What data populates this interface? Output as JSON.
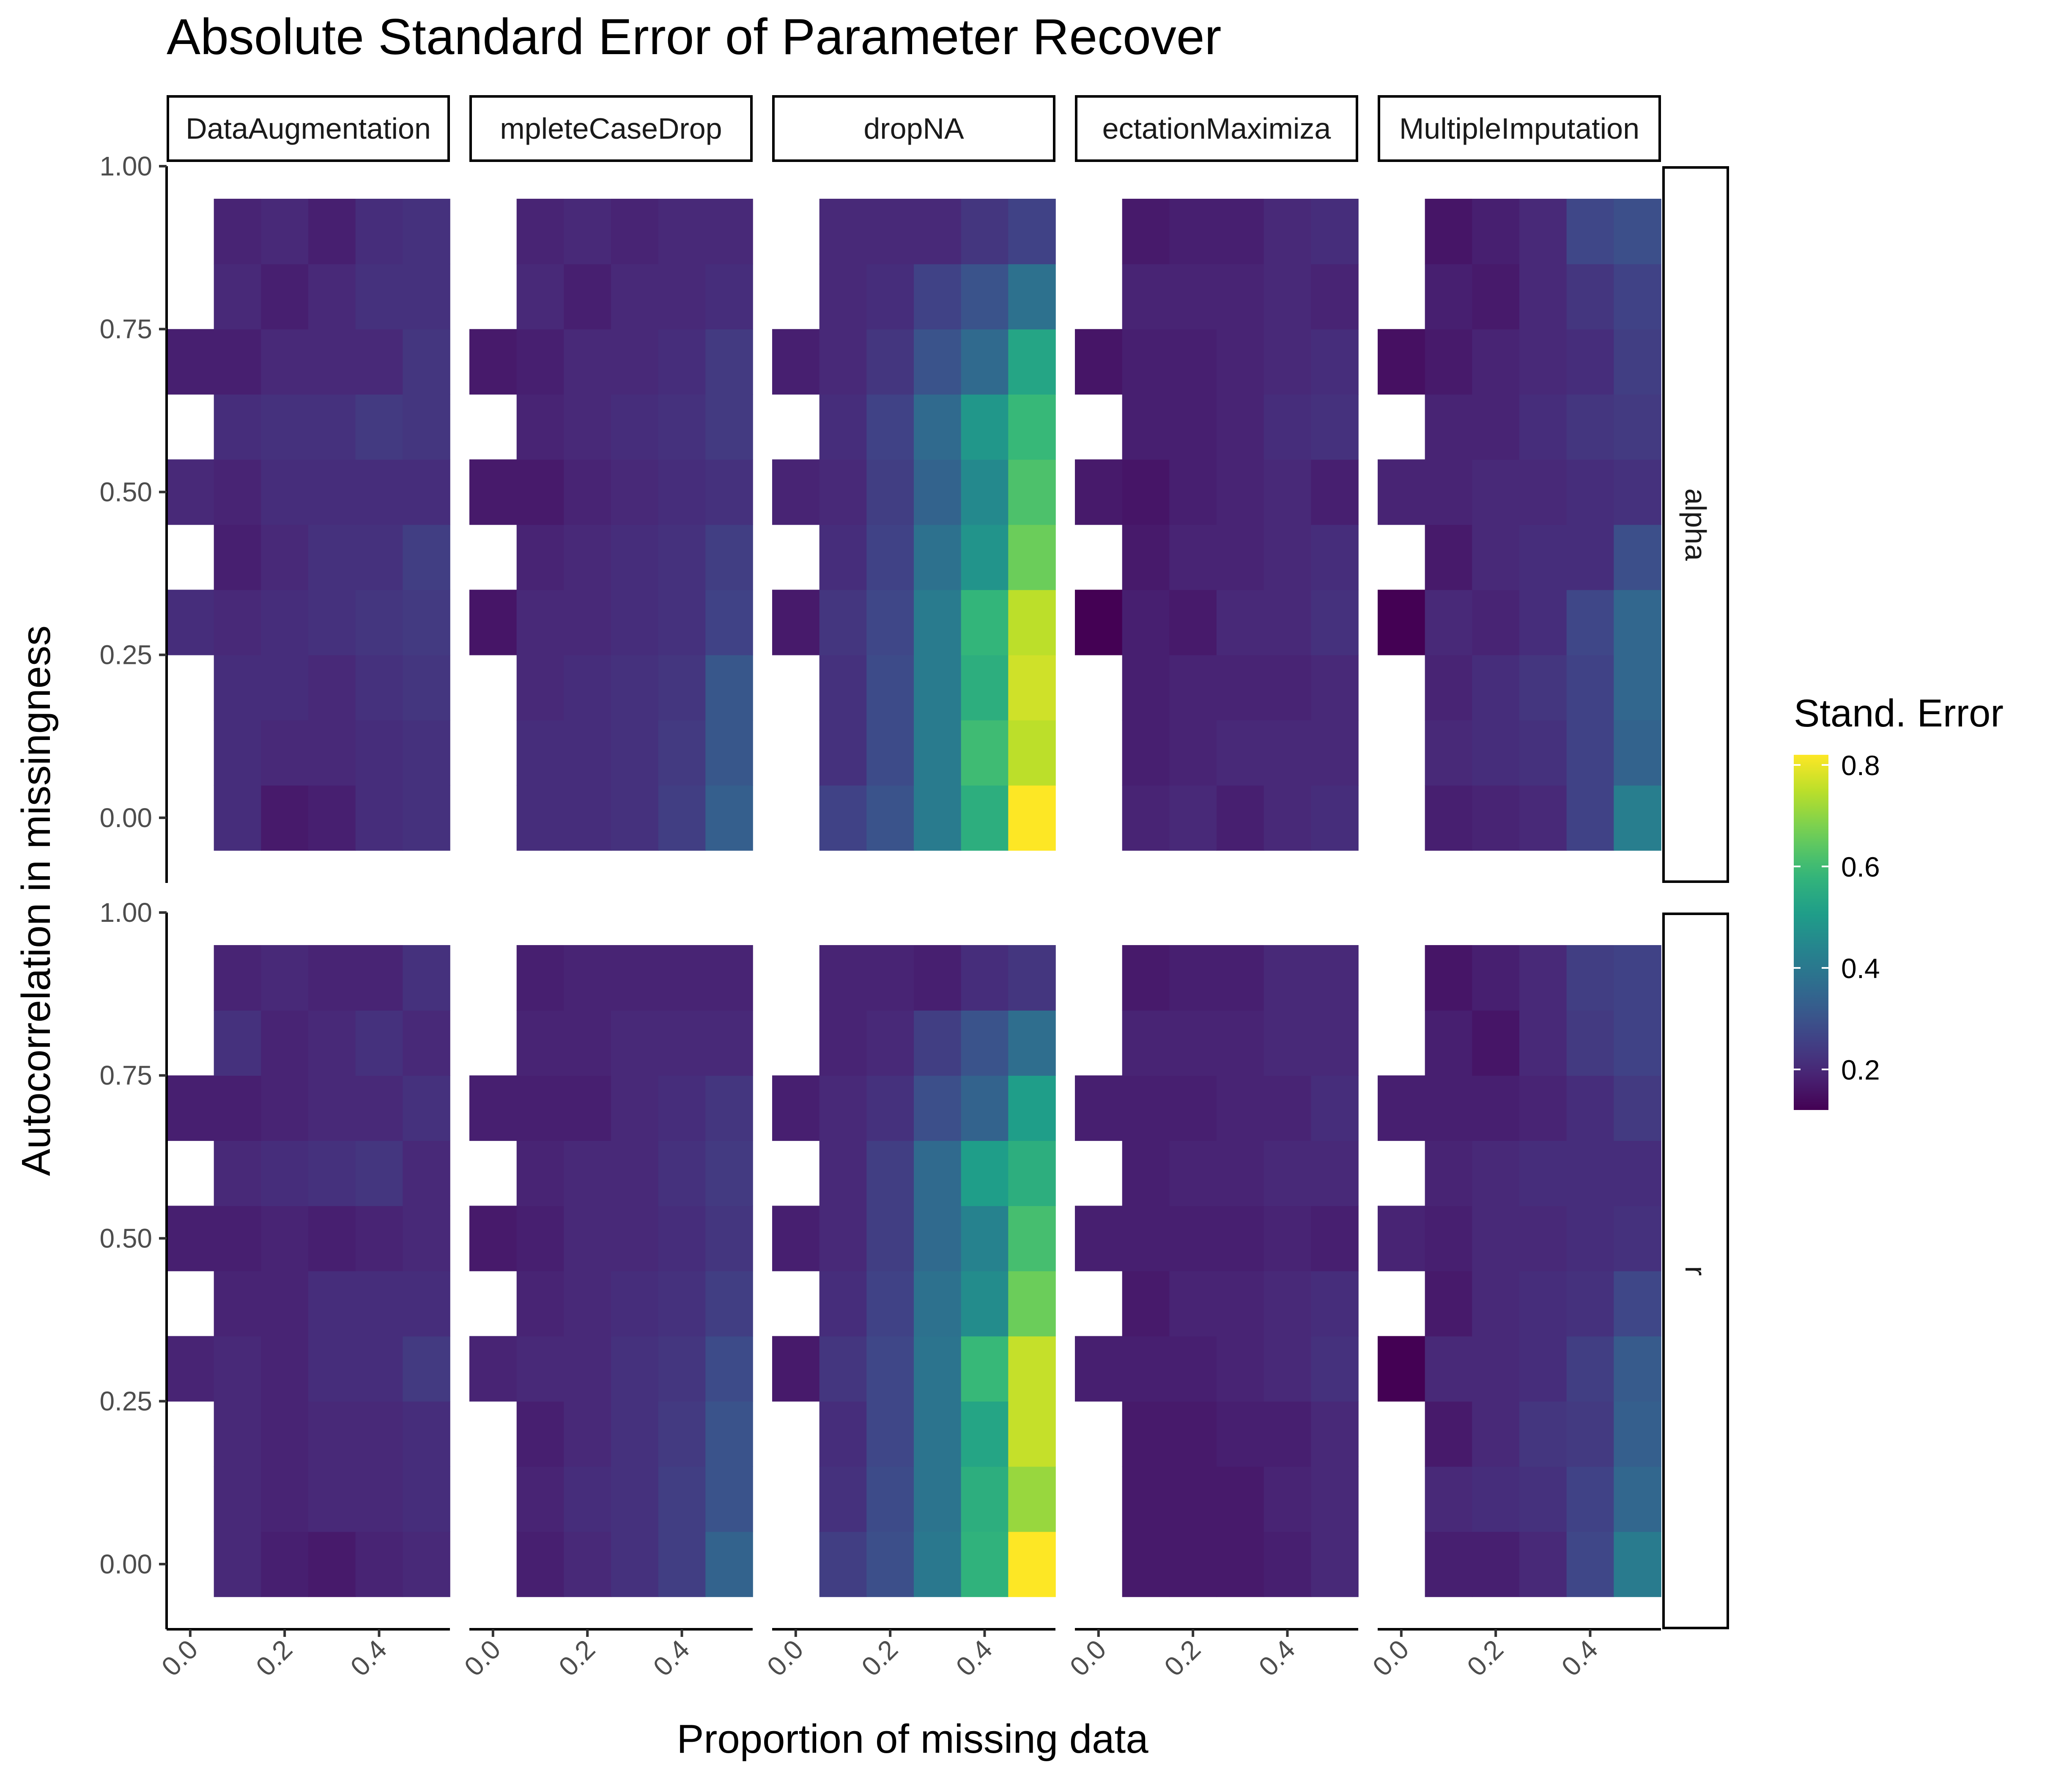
{
  "chart_data": {
    "type": "heatmap",
    "title": "Absolute Standard Error of Parameter Recover",
    "xlabel": "Proportion of missing data",
    "ylabel": "Autocorrelation in missingness",
    "legend_title": "Stand. Error",
    "legend_position": "right",
    "grid": false,
    "color_scale": "viridis",
    "color_range": [
      0.12,
      0.82
    ],
    "legend_ticks": [
      0.2,
      0.4,
      0.6,
      0.8
    ],
    "xlim": [
      -0.05,
      0.55
    ],
    "ylim": [
      -0.1,
      1.0
    ],
    "x_ticks": [
      0.0,
      0.2,
      0.4
    ],
    "x_tick_labels": [
      "0.0",
      "0.2",
      "0.4"
    ],
    "y_ticks": [
      0.0,
      0.25,
      0.5,
      0.75,
      1.0
    ],
    "y_tick_labels": [
      "0.00",
      "0.25",
      "0.50",
      "0.75",
      "1.00"
    ],
    "x": [
      0.0,
      0.1,
      0.2,
      0.3,
      0.4,
      0.5
    ],
    "y": [
      0.0,
      0.1,
      0.2,
      0.3,
      0.4,
      0.5,
      0.6,
      0.7,
      0.8,
      0.9
    ],
    "column_facets": [
      "DataAugmentation",
      "CompleteCaseDrop",
      "dropNA",
      "ExpectationMaximization",
      "MultipleImputation"
    ],
    "row_facets": [
      "alpha",
      "r"
    ],
    "panels": [
      {
        "row": "alpha",
        "method": "DataAugmentation",
        "values": [
          [
            null,
            0.21,
            0.17,
            0.18,
            0.21,
            0.22
          ],
          [
            null,
            0.21,
            0.2,
            0.2,
            0.21,
            0.22
          ],
          [
            null,
            0.21,
            0.21,
            0.2,
            0.22,
            0.23
          ],
          [
            0.21,
            0.2,
            0.21,
            0.22,
            0.23,
            0.24
          ],
          [
            null,
            0.18,
            0.2,
            0.22,
            0.22,
            0.25
          ],
          [
            0.2,
            0.19,
            0.21,
            0.21,
            0.21,
            0.21
          ],
          [
            null,
            0.21,
            0.22,
            0.22,
            0.24,
            0.23
          ],
          [
            0.18,
            0.18,
            0.2,
            0.2,
            0.2,
            0.23
          ],
          [
            null,
            0.2,
            0.18,
            0.2,
            0.22,
            0.22
          ],
          [
            null,
            0.19,
            0.2,
            0.18,
            0.21,
            0.22
          ]
        ]
      },
      {
        "row": "alpha",
        "method": "CompleteCaseDrop",
        "values": [
          [
            null,
            0.21,
            0.21,
            0.22,
            0.25,
            0.33
          ],
          [
            null,
            0.21,
            0.21,
            0.22,
            0.24,
            0.31
          ],
          [
            null,
            0.2,
            0.21,
            0.22,
            0.23,
            0.31
          ],
          [
            0.16,
            0.2,
            0.2,
            0.21,
            0.22,
            0.26
          ],
          [
            null,
            0.19,
            0.2,
            0.21,
            0.22,
            0.25
          ],
          [
            0.17,
            0.17,
            0.19,
            0.2,
            0.21,
            0.22
          ],
          [
            null,
            0.19,
            0.2,
            0.21,
            0.22,
            0.24
          ],
          [
            0.17,
            0.18,
            0.2,
            0.2,
            0.21,
            0.24
          ],
          [
            null,
            0.2,
            0.18,
            0.2,
            0.2,
            0.21
          ],
          [
            null,
            0.19,
            0.2,
            0.19,
            0.2,
            0.2
          ]
        ]
      },
      {
        "row": "alpha",
        "method": "dropNA",
        "values": [
          [
            null,
            0.26,
            0.3,
            0.41,
            0.56,
            0.82
          ],
          [
            null,
            0.22,
            0.28,
            0.41,
            0.6,
            0.75
          ],
          [
            null,
            0.22,
            0.28,
            0.41,
            0.56,
            0.77
          ],
          [
            0.17,
            0.23,
            0.27,
            0.41,
            0.58,
            0.75
          ],
          [
            null,
            0.21,
            0.26,
            0.38,
            0.48,
            0.66
          ],
          [
            0.19,
            0.2,
            0.25,
            0.34,
            0.45,
            0.62
          ],
          [
            null,
            0.21,
            0.26,
            0.36,
            0.49,
            0.59
          ],
          [
            0.18,
            0.2,
            0.23,
            0.3,
            0.36,
            0.53
          ],
          [
            null,
            0.2,
            0.21,
            0.26,
            0.3,
            0.38
          ],
          [
            null,
            0.2,
            0.2,
            0.2,
            0.23,
            0.26
          ]
        ]
      },
      {
        "row": "alpha",
        "method": "ExpectationMaximization",
        "values": [
          [
            null,
            0.19,
            0.2,
            0.18,
            0.2,
            0.21
          ],
          [
            null,
            0.18,
            0.19,
            0.2,
            0.2,
            0.2
          ],
          [
            null,
            0.18,
            0.19,
            0.19,
            0.19,
            0.2
          ],
          [
            0.12,
            0.18,
            0.17,
            0.2,
            0.2,
            0.22
          ],
          [
            null,
            0.17,
            0.19,
            0.19,
            0.2,
            0.21
          ],
          [
            0.17,
            0.16,
            0.18,
            0.19,
            0.2,
            0.18
          ],
          [
            null,
            0.18,
            0.18,
            0.19,
            0.21,
            0.22
          ],
          [
            0.16,
            0.18,
            0.18,
            0.19,
            0.2,
            0.21
          ],
          [
            null,
            0.19,
            0.19,
            0.19,
            0.2,
            0.19
          ],
          [
            null,
            0.17,
            0.18,
            0.18,
            0.2,
            0.21
          ]
        ]
      },
      {
        "row": "alpha",
        "method": "MultipleImputation",
        "values": [
          [
            null,
            0.18,
            0.19,
            0.2,
            0.26,
            0.42
          ],
          [
            null,
            0.2,
            0.21,
            0.22,
            0.26,
            0.34
          ],
          [
            null,
            0.19,
            0.21,
            0.23,
            0.26,
            0.35
          ],
          [
            0.11,
            0.2,
            0.19,
            0.21,
            0.27,
            0.35
          ],
          [
            null,
            0.17,
            0.2,
            0.21,
            0.21,
            0.29
          ],
          [
            0.19,
            0.19,
            0.2,
            0.2,
            0.21,
            0.22
          ],
          [
            null,
            0.19,
            0.19,
            0.21,
            0.23,
            0.24
          ],
          [
            0.15,
            0.17,
            0.19,
            0.2,
            0.21,
            0.25
          ],
          [
            null,
            0.18,
            0.17,
            0.2,
            0.23,
            0.26
          ],
          [
            null,
            0.16,
            0.18,
            0.2,
            0.27,
            0.29
          ]
        ]
      },
      {
        "row": "r",
        "method": "DataAugmentation",
        "values": [
          [
            null,
            0.2,
            0.18,
            0.17,
            0.19,
            0.2
          ],
          [
            null,
            0.2,
            0.19,
            0.2,
            0.2,
            0.21
          ],
          [
            null,
            0.2,
            0.19,
            0.2,
            0.2,
            0.21
          ],
          [
            0.19,
            0.2,
            0.19,
            0.21,
            0.21,
            0.24
          ],
          [
            null,
            0.19,
            0.19,
            0.21,
            0.21,
            0.21
          ],
          [
            0.18,
            0.18,
            0.19,
            0.18,
            0.19,
            0.2
          ],
          [
            null,
            0.2,
            0.21,
            0.22,
            0.23,
            0.2
          ],
          [
            0.18,
            0.18,
            0.19,
            0.2,
            0.2,
            0.22
          ],
          [
            null,
            0.22,
            0.19,
            0.2,
            0.22,
            0.2
          ],
          [
            null,
            0.19,
            0.2,
            0.19,
            0.19,
            0.22
          ]
        ]
      },
      {
        "row": "r",
        "method": "CompleteCaseDrop",
        "values": [
          [
            null,
            0.18,
            0.2,
            0.22,
            0.25,
            0.34
          ],
          [
            null,
            0.19,
            0.21,
            0.22,
            0.25,
            0.3
          ],
          [
            null,
            0.18,
            0.2,
            0.22,
            0.24,
            0.3
          ],
          [
            0.19,
            0.2,
            0.2,
            0.22,
            0.23,
            0.28
          ],
          [
            null,
            0.19,
            0.2,
            0.21,
            0.22,
            0.25
          ],
          [
            0.17,
            0.18,
            0.2,
            0.2,
            0.21,
            0.23
          ],
          [
            null,
            0.19,
            0.2,
            0.2,
            0.22,
            0.24
          ],
          [
            0.18,
            0.18,
            0.18,
            0.2,
            0.21,
            0.23
          ],
          [
            null,
            0.19,
            0.19,
            0.2,
            0.2,
            0.2
          ],
          [
            null,
            0.18,
            0.19,
            0.19,
            0.19,
            0.19
          ]
        ]
      },
      {
        "row": "r",
        "method": "dropNA",
        "values": [
          [
            null,
            0.25,
            0.29,
            0.4,
            0.57,
            0.83
          ],
          [
            null,
            0.22,
            0.28,
            0.39,
            0.56,
            0.71
          ],
          [
            null,
            0.21,
            0.27,
            0.39,
            0.53,
            0.76
          ],
          [
            0.17,
            0.23,
            0.27,
            0.39,
            0.59,
            0.76
          ],
          [
            null,
            0.21,
            0.26,
            0.38,
            0.46,
            0.66
          ],
          [
            0.18,
            0.2,
            0.25,
            0.36,
            0.43,
            0.61
          ],
          [
            null,
            0.2,
            0.25,
            0.36,
            0.51,
            0.56
          ],
          [
            0.18,
            0.2,
            0.22,
            0.29,
            0.34,
            0.51
          ],
          [
            null,
            0.19,
            0.2,
            0.25,
            0.3,
            0.37
          ],
          [
            null,
            0.19,
            0.19,
            0.18,
            0.21,
            0.23
          ]
        ]
      },
      {
        "row": "r",
        "method": "ExpectationMaximization",
        "values": [
          [
            null,
            0.17,
            0.17,
            0.17,
            0.18,
            0.2
          ],
          [
            null,
            0.17,
            0.17,
            0.17,
            0.19,
            0.2
          ],
          [
            null,
            0.17,
            0.17,
            0.18,
            0.18,
            0.2
          ],
          [
            0.18,
            0.18,
            0.18,
            0.19,
            0.2,
            0.22
          ],
          [
            null,
            0.17,
            0.19,
            0.19,
            0.2,
            0.21
          ],
          [
            0.18,
            0.18,
            0.18,
            0.18,
            0.19,
            0.18
          ],
          [
            null,
            0.18,
            0.19,
            0.19,
            0.2,
            0.2
          ],
          [
            0.18,
            0.18,
            0.18,
            0.19,
            0.19,
            0.21
          ],
          [
            null,
            0.19,
            0.19,
            0.19,
            0.2,
            0.2
          ],
          [
            null,
            0.17,
            0.18,
            0.18,
            0.2,
            0.2
          ]
        ]
      },
      {
        "row": "r",
        "method": "MultipleImputation",
        "values": [
          [
            null,
            0.18,
            0.18,
            0.2,
            0.27,
            0.41
          ],
          [
            null,
            0.2,
            0.21,
            0.22,
            0.26,
            0.35
          ],
          [
            null,
            0.17,
            0.2,
            0.23,
            0.24,
            0.33
          ],
          [
            0.12,
            0.2,
            0.2,
            0.21,
            0.25,
            0.32
          ],
          [
            null,
            0.17,
            0.2,
            0.21,
            0.22,
            0.27
          ],
          [
            0.19,
            0.18,
            0.2,
            0.2,
            0.21,
            0.22
          ],
          [
            null,
            0.19,
            0.2,
            0.21,
            0.21,
            0.21
          ],
          [
            0.18,
            0.18,
            0.18,
            0.19,
            0.21,
            0.24
          ],
          [
            null,
            0.18,
            0.16,
            0.2,
            0.24,
            0.26
          ],
          [
            null,
            0.16,
            0.18,
            0.2,
            0.25,
            0.26
          ]
        ]
      }
    ]
  },
  "strip_labels_shown": {
    "columns": [
      "DataAugmentation",
      "mpleteCaseDrop",
      "dropNA",
      "ectationMaximiza",
      "MultipleImputation"
    ],
    "rows": [
      "alpha",
      "r"
    ]
  }
}
